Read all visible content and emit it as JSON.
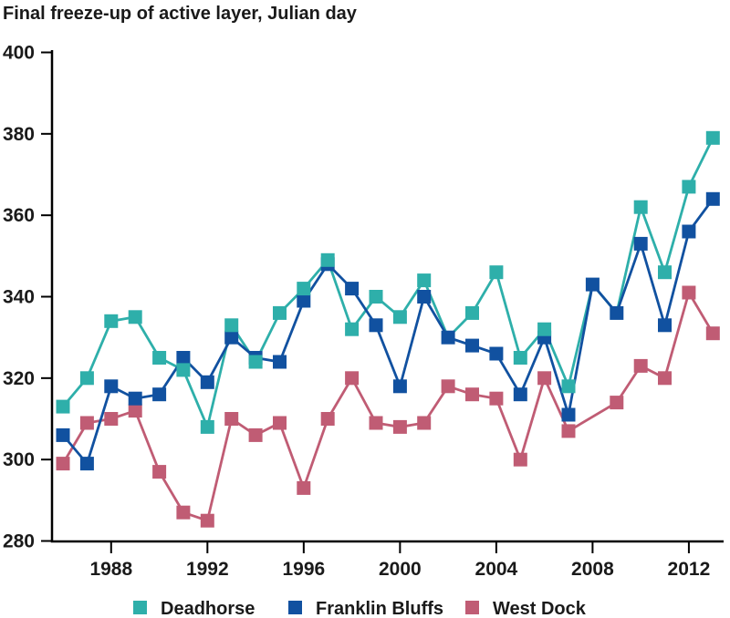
{
  "title": "Final freeze-up of active layer, Julian day",
  "chart_data": {
    "type": "line",
    "marker": "square",
    "grid": false,
    "legend_position": "bottom",
    "ylim": [
      280,
      400
    ],
    "xlim": [
      1986,
      2013
    ],
    "x": [
      1986,
      1987,
      1988,
      1989,
      1990,
      1991,
      1992,
      1993,
      1994,
      1995,
      1996,
      1997,
      1998,
      1999,
      2000,
      2001,
      2002,
      2003,
      2004,
      2005,
      2006,
      2007,
      2008,
      2009,
      2010,
      2011,
      2012,
      2013
    ],
    "x_ticks": [
      1988,
      1992,
      1996,
      2000,
      2004,
      2008,
      2012
    ],
    "y_ticks": [
      400,
      380,
      360,
      340,
      320,
      300,
      280
    ],
    "series": [
      {
        "name": "Deadhorse",
        "color": "#2EAFAA",
        "values": [
          313,
          320,
          334,
          335,
          325,
          322,
          308,
          333,
          324,
          336,
          342,
          349,
          332,
          340,
          335,
          344,
          330,
          336,
          346,
          325,
          332,
          318,
          343,
          336,
          362,
          346,
          367,
          379
        ]
      },
      {
        "name": "Franklin Bluffs",
        "color": "#1151A0",
        "values": [
          306,
          299,
          318,
          315,
          316,
          325,
          319,
          330,
          325,
          324,
          339,
          348,
          342,
          333,
          318,
          340,
          330,
          328,
          326,
          316,
          330,
          311,
          343,
          336,
          353,
          333,
          356,
          364
        ]
      },
      {
        "name": "West Dock",
        "color": "#C05C74",
        "values": [
          299,
          309,
          310,
          312,
          297,
          287,
          285,
          310,
          306,
          309,
          293,
          310,
          320,
          309,
          308,
          309,
          318,
          316,
          315,
          300,
          320,
          307,
          null,
          314,
          323,
          320,
          341,
          331
        ]
      }
    ]
  }
}
